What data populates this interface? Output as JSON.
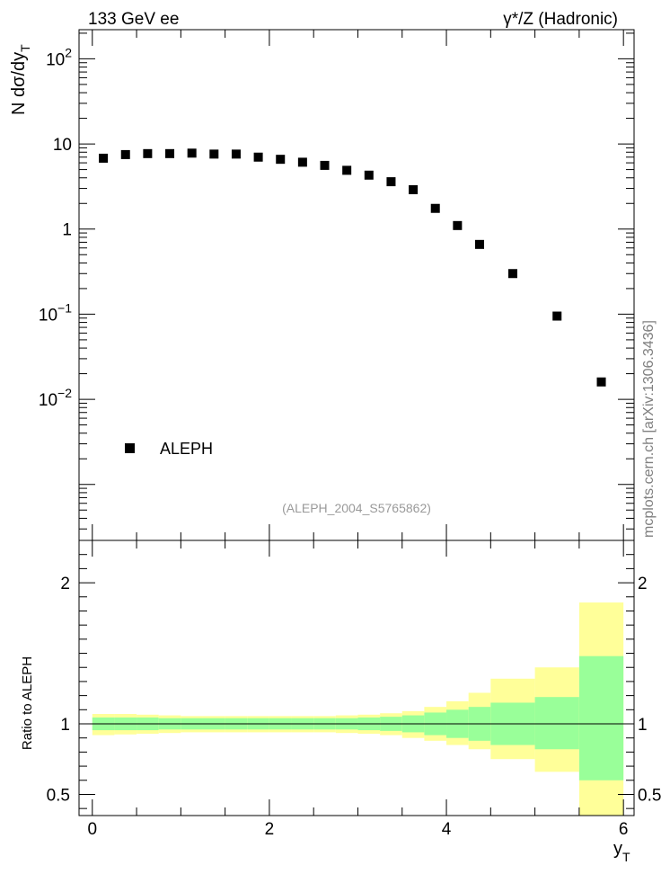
{
  "header": {
    "left": "133 GeV ee",
    "right": "γ*/Z (Hadronic)"
  },
  "side_text": "mcplots.cern.ch [arXiv:1306.3436]",
  "reference": "(ALEPH_2004_S5765862)",
  "colors": {
    "marker": "#000000",
    "band_inner": "#99ff99",
    "band_outer": "#ffff99",
    "reference_line": "#000000"
  },
  "chart_data": [
    {
      "type": "scatter",
      "panel": "main",
      "ylabel": "N dσ/dy",
      "ylabel_sub": "T",
      "yscale": "log",
      "xlim": [
        -0.15,
        6.12
      ],
      "ylim": [
        0.00022,
        220
      ],
      "y_ticks": [
        {
          "value": 100,
          "base": "10",
          "exp": "2"
        },
        {
          "value": 10,
          "base": "10",
          "exp": ""
        },
        {
          "value": 1,
          "base": "1",
          "exp": ""
        },
        {
          "value": 0.1,
          "base": "10",
          "exp": "−1"
        },
        {
          "value": 0.01,
          "base": "10",
          "exp": "−2"
        }
      ],
      "legend": {
        "position": "lower-left",
        "entries": [
          "ALEPH"
        ]
      },
      "series": [
        {
          "name": "ALEPH",
          "marker": "square",
          "x": [
            0.125,
            0.375,
            0.625,
            0.875,
            1.125,
            1.375,
            1.625,
            1.875,
            2.125,
            2.375,
            2.625,
            2.875,
            3.125,
            3.375,
            3.625,
            3.875,
            4.125,
            4.375,
            4.75,
            5.25,
            5.75
          ],
          "y": [
            6.8,
            7.5,
            7.7,
            7.7,
            7.8,
            7.6,
            7.6,
            7.0,
            6.6,
            6.1,
            5.6,
            4.9,
            4.3,
            3.6,
            2.9,
            1.75,
            1.1,
            0.66,
            0.3,
            0.095,
            0.016
          ]
        }
      ]
    },
    {
      "type": "area",
      "panel": "ratio",
      "ylabel": "Ratio to ALEPH",
      "xlabel": "y",
      "xlabel_sub": "T",
      "xlim": [
        -0.15,
        6.12
      ],
      "ylim": [
        0.35,
        2.3
      ],
      "x_ticks": [
        0,
        2,
        4,
        6
      ],
      "y_ticks": [
        0.5,
        1,
        2
      ],
      "reference_line": 1,
      "bins": [
        {
          "x0": 0.0,
          "x1": 0.25,
          "inner": [
            0.955,
            1.045
          ],
          "outer": [
            0.92,
            1.07
          ]
        },
        {
          "x0": 0.25,
          "x1": 0.5,
          "inner": [
            0.955,
            1.045
          ],
          "outer": [
            0.925,
            1.07
          ]
        },
        {
          "x0": 0.5,
          "x1": 0.75,
          "inner": [
            0.955,
            1.045
          ],
          "outer": [
            0.93,
            1.065
          ]
        },
        {
          "x0": 0.75,
          "x1": 1.0,
          "inner": [
            0.96,
            1.04
          ],
          "outer": [
            0.935,
            1.06
          ]
        },
        {
          "x0": 1.0,
          "x1": 1.25,
          "inner": [
            0.96,
            1.04
          ],
          "outer": [
            0.94,
            1.055
          ]
        },
        {
          "x0": 1.25,
          "x1": 1.5,
          "inner": [
            0.96,
            1.04
          ],
          "outer": [
            0.94,
            1.055
          ]
        },
        {
          "x0": 1.5,
          "x1": 1.75,
          "inner": [
            0.96,
            1.04
          ],
          "outer": [
            0.94,
            1.055
          ]
        },
        {
          "x0": 1.75,
          "x1": 2.0,
          "inner": [
            0.96,
            1.04
          ],
          "outer": [
            0.94,
            1.055
          ]
        },
        {
          "x0": 2.0,
          "x1": 2.25,
          "inner": [
            0.96,
            1.04
          ],
          "outer": [
            0.94,
            1.055
          ]
        },
        {
          "x0": 2.25,
          "x1": 2.5,
          "inner": [
            0.96,
            1.04
          ],
          "outer": [
            0.94,
            1.055
          ]
        },
        {
          "x0": 2.5,
          "x1": 2.75,
          "inner": [
            0.96,
            1.04
          ],
          "outer": [
            0.94,
            1.055
          ]
        },
        {
          "x0": 2.75,
          "x1": 3.0,
          "inner": [
            0.96,
            1.04
          ],
          "outer": [
            0.935,
            1.06
          ]
        },
        {
          "x0": 3.0,
          "x1": 3.25,
          "inner": [
            0.955,
            1.045
          ],
          "outer": [
            0.93,
            1.065
          ]
        },
        {
          "x0": 3.25,
          "x1": 3.5,
          "inner": [
            0.95,
            1.05
          ],
          "outer": [
            0.92,
            1.075
          ]
        },
        {
          "x0": 3.5,
          "x1": 3.75,
          "inner": [
            0.94,
            1.06
          ],
          "outer": [
            0.9,
            1.09
          ]
        },
        {
          "x0": 3.75,
          "x1": 4.0,
          "inner": [
            0.92,
            1.08
          ],
          "outer": [
            0.88,
            1.12
          ]
        },
        {
          "x0": 4.0,
          "x1": 4.25,
          "inner": [
            0.9,
            1.1
          ],
          "outer": [
            0.85,
            1.16
          ]
        },
        {
          "x0": 4.25,
          "x1": 4.5,
          "inner": [
            0.88,
            1.12
          ],
          "outer": [
            0.82,
            1.22
          ]
        },
        {
          "x0": 4.5,
          "x1": 5.0,
          "inner": [
            0.85,
            1.15
          ],
          "outer": [
            0.75,
            1.32
          ]
        },
        {
          "x0": 5.0,
          "x1": 5.5,
          "inner": [
            0.82,
            1.19
          ],
          "outer": [
            0.66,
            1.4
          ]
        },
        {
          "x0": 5.5,
          "x1": 6.0,
          "inner": [
            0.6,
            1.48
          ],
          "outer": [
            0.35,
            1.86
          ]
        }
      ]
    }
  ]
}
